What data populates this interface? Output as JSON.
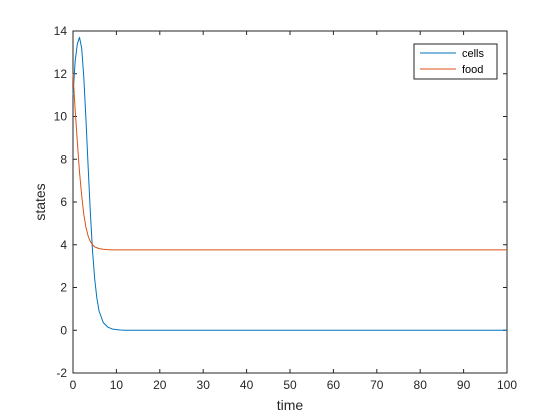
{
  "chart_data": {
    "type": "line",
    "title": "",
    "xlabel": "time",
    "ylabel": "states",
    "xlim": [
      0,
      100
    ],
    "ylim": [
      -2,
      14
    ],
    "xticks": [
      0,
      10,
      20,
      30,
      40,
      50,
      60,
      70,
      80,
      90,
      100
    ],
    "yticks": [
      -2,
      0,
      2,
      4,
      6,
      8,
      10,
      12,
      14
    ],
    "grid": false,
    "legend_position": "top-right",
    "series": [
      {
        "name": "cells",
        "color": "#0072bd",
        "x": [
          0,
          0.5,
          1,
          1.5,
          2,
          2.5,
          3,
          3.5,
          4,
          4.5,
          5,
          5.5,
          6,
          7,
          8,
          9,
          10,
          11,
          12,
          14,
          20,
          40,
          60,
          80,
          100
        ],
        "y": [
          11.0,
          12.6,
          13.4,
          13.7,
          13.2,
          11.8,
          9.8,
          7.6,
          5.5,
          3.7,
          2.4,
          1.5,
          0.9,
          0.35,
          0.15,
          0.06,
          0.03,
          0.01,
          0.0,
          0.0,
          0.0,
          0.0,
          0.0,
          0.0,
          0.0
        ]
      },
      {
        "name": "food",
        "color": "#d95319",
        "x": [
          0,
          0.5,
          1,
          1.5,
          2,
          2.5,
          3,
          3.5,
          4,
          4.5,
          5,
          6,
          7,
          8,
          9,
          10,
          12,
          15,
          20,
          40,
          60,
          80,
          100
        ],
        "y": [
          12.0,
          10.3,
          8.8,
          7.4,
          6.3,
          5.4,
          4.8,
          4.4,
          4.15,
          4.0,
          3.9,
          3.82,
          3.79,
          3.77,
          3.76,
          3.76,
          3.76,
          3.76,
          3.76,
          3.76,
          3.76,
          3.76,
          3.76
        ]
      }
    ]
  }
}
